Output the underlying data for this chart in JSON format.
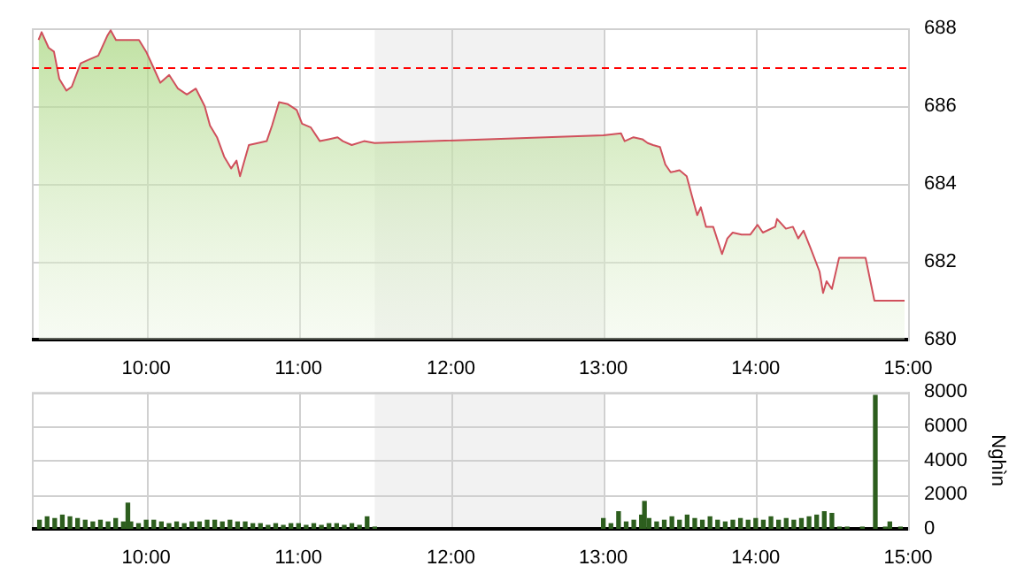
{
  "chart_data": [
    {
      "type": "area",
      "xlim": [
        9.25,
        15
      ],
      "ylim": [
        680,
        688
      ],
      "xticks": [
        {
          "value": 10,
          "label": "10:00"
        },
        {
          "value": 11,
          "label": "11:00"
        },
        {
          "value": 12,
          "label": "12:00"
        },
        {
          "value": 13,
          "label": "13:00"
        },
        {
          "value": 14,
          "label": "14:00"
        },
        {
          "value": 15,
          "label": "15:00"
        }
      ],
      "yticks": [
        680,
        682,
        684,
        686,
        688
      ],
      "grid": true,
      "legend": false,
      "x": [
        9.294,
        9.314,
        9.36,
        9.395,
        9.43,
        9.477,
        9.512,
        9.57,
        9.628,
        9.686,
        9.744,
        9.767,
        9.802,
        9.884,
        9.953,
        10.0,
        10.047,
        10.093,
        10.151,
        10.209,
        10.267,
        10.326,
        10.384,
        10.419,
        10.465,
        10.512,
        10.558,
        10.593,
        10.616,
        10.674,
        10.733,
        10.791,
        10.826,
        10.872,
        10.93,
        10.988,
        11.023,
        11.081,
        11.14,
        11.198,
        11.256,
        11.291,
        11.349,
        11.43,
        11.5,
        13.0,
        13.116,
        13.14,
        13.198,
        13.256,
        13.291,
        13.326,
        13.372,
        13.407,
        13.442,
        13.5,
        13.547,
        13.581,
        13.616,
        13.64,
        13.674,
        13.721,
        13.779,
        13.814,
        13.849,
        13.907,
        13.965,
        14.012,
        14.047,
        14.128,
        14.14,
        14.198,
        14.244,
        14.279,
        14.314,
        14.36,
        14.419,
        14.442,
        14.465,
        14.5,
        14.547,
        14.721,
        14.779,
        14.977
      ],
      "series": [
        {
          "color": "#d0505c",
          "values": [
            687.7,
            687.9,
            687.5,
            687.4,
            686.7,
            686.4,
            686.5,
            687.1,
            687.2,
            687.3,
            687.8,
            687.95,
            687.7,
            687.7,
            687.7,
            687.4,
            687.0,
            686.6,
            686.8,
            686.45,
            686.3,
            686.45,
            686.0,
            685.5,
            685.2,
            684.7,
            684.4,
            684.6,
            684.2,
            685.0,
            685.05,
            685.1,
            685.5,
            686.1,
            686.05,
            685.9,
            685.55,
            685.45,
            685.1,
            685.15,
            685.2,
            685.1,
            685.0,
            685.1,
            685.05,
            685.25,
            685.3,
            685.1,
            685.2,
            685.15,
            685.05,
            685.0,
            684.95,
            684.5,
            684.3,
            684.35,
            684.2,
            683.7,
            683.2,
            683.4,
            682.9,
            682.9,
            682.2,
            682.6,
            682.75,
            682.7,
            682.7,
            682.95,
            682.75,
            682.9,
            683.1,
            682.85,
            682.9,
            682.6,
            682.8,
            682.35,
            681.75,
            681.2,
            681.5,
            681.3,
            682.1,
            682.1,
            681.0,
            681.0
          ]
        }
      ],
      "ref_lines": [
        {
          "axis": "y",
          "value": 687,
          "color": "#ff0000",
          "line_style": "dashed"
        }
      ],
      "bands": [
        {
          "axis": "x",
          "from": 11.5,
          "to": 13,
          "color": "#f2f2f2"
        }
      ]
    },
    {
      "type": "bar",
      "xlim": [
        9.25,
        15
      ],
      "ylim": [
        0,
        8000
      ],
      "ylabel": "Nghìn",
      "xticks": [
        {
          "value": 10,
          "label": "10:00"
        },
        {
          "value": 11,
          "label": "11:00"
        },
        {
          "value": 12,
          "label": "12:00"
        },
        {
          "value": 13,
          "label": "13:00"
        },
        {
          "value": 14,
          "label": "14:00"
        },
        {
          "value": 15,
          "label": "15:00"
        }
      ],
      "yticks": [
        0,
        2000,
        4000,
        6000,
        8000
      ],
      "grid": true,
      "legend": false,
      "x": [
        9.3,
        9.35,
        9.4,
        9.45,
        9.5,
        9.55,
        9.6,
        9.65,
        9.7,
        9.75,
        9.8,
        9.85,
        9.88,
        9.9,
        9.95,
        10.0,
        10.05,
        10.1,
        10.15,
        10.2,
        10.25,
        10.3,
        10.35,
        10.4,
        10.45,
        10.5,
        10.55,
        10.6,
        10.65,
        10.7,
        10.75,
        10.8,
        10.85,
        10.9,
        10.95,
        11.0,
        11.05,
        11.1,
        11.15,
        11.2,
        11.25,
        11.3,
        11.35,
        11.4,
        11.45,
        11.5,
        13.0,
        13.05,
        13.1,
        13.15,
        13.2,
        13.25,
        13.27,
        13.3,
        13.35,
        13.4,
        13.45,
        13.5,
        13.55,
        13.6,
        13.65,
        13.7,
        13.75,
        13.8,
        13.85,
        13.9,
        13.95,
        14.0,
        14.05,
        14.1,
        14.15,
        14.2,
        14.25,
        14.3,
        14.35,
        14.4,
        14.45,
        14.5,
        14.55,
        14.6,
        14.7,
        14.785,
        14.85,
        14.88,
        14.95
      ],
      "series": [
        {
          "color": "#2d5e1e",
          "values": [
            500,
            700,
            600,
            800,
            700,
            600,
            500,
            400,
            500,
            400,
            600,
            400,
            1500,
            400,
            300,
            500,
            500,
            400,
            300,
            400,
            300,
            400,
            400,
            500,
            500,
            400,
            500,
            400,
            400,
            300,
            300,
            200,
            300,
            200,
            300,
            300,
            200,
            300,
            200,
            300,
            300,
            200,
            300,
            200,
            700,
            100,
            600,
            300,
            1000,
            400,
            500,
            800,
            1600,
            600,
            400,
            500,
            700,
            500,
            800,
            600,
            500,
            700,
            500,
            400,
            500,
            600,
            500,
            600,
            500,
            700,
            500,
            600,
            500,
            600,
            700,
            800,
            1000,
            900,
            100,
            100,
            100,
            7800,
            100,
            400,
            100
          ]
        }
      ],
      "bands": [
        {
          "axis": "x",
          "from": 11.5,
          "to": 13,
          "color": "#f2f2f2"
        }
      ]
    }
  ]
}
